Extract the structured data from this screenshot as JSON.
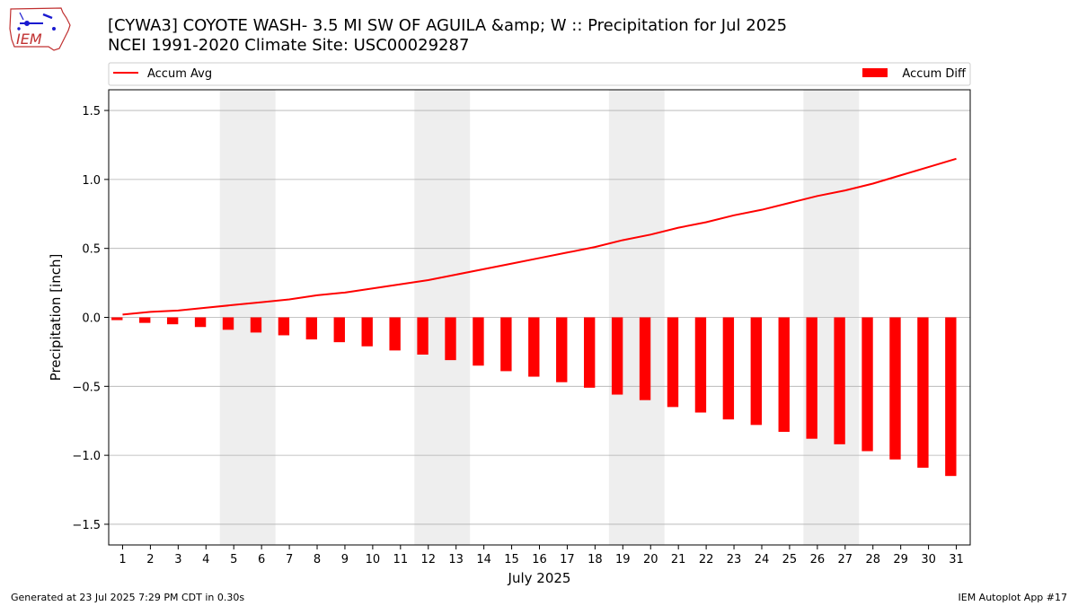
{
  "logo": {
    "text": "IEM"
  },
  "header": {
    "title_line1": "[CYWA3] COYOTE WASH- 3.5 MI SW OF AGUILA &amp; W :: Precipitation for Jul 2025",
    "title_line2": "NCEI 1991-2020 Climate Site: USC00029287"
  },
  "footer": {
    "left": "Generated at 23 Jul 2025 7:29 PM CDT in 0.30s",
    "right": "IEM Autoplot App #17"
  },
  "colors": {
    "accum_avg": "#ff0000",
    "accum_diff": "#ff0000",
    "weekend_shade": "#eeeeee",
    "grid": "#b0b0b0"
  },
  "chart_data": {
    "type": "bar",
    "title": "[CYWA3] COYOTE WASH- 3.5 MI SW OF AGUILA &amp; W :: Precipitation for Jul 2025",
    "subtitle": "NCEI 1991-2020 Climate Site: USC00029287",
    "xlabel": "July 2025",
    "ylabel": "Precipitation [inch]",
    "xlim": [
      0.5,
      31.5
    ],
    "ylim": [
      -1.65,
      1.65
    ],
    "yticks": [
      -1.5,
      -1.0,
      -0.5,
      0.0,
      0.5,
      1.0,
      1.5
    ],
    "ytick_labels": [
      "−1.5",
      "−1.0",
      "−0.5",
      "0.0",
      "0.5",
      "1.0",
      "1.5"
    ],
    "grid": "horizontal",
    "legend_placement": "top, above plot",
    "categories": [
      "1",
      "2",
      "3",
      "4",
      "5",
      "6",
      "7",
      "8",
      "9",
      "10",
      "11",
      "12",
      "13",
      "14",
      "15",
      "16",
      "17",
      "18",
      "19",
      "20",
      "21",
      "22",
      "23",
      "24",
      "25",
      "26",
      "27",
      "28",
      "29",
      "30",
      "31"
    ],
    "shaded_spans": [
      [
        4.5,
        6.5
      ],
      [
        11.5,
        13.5
      ],
      [
        18.5,
        20.5
      ],
      [
        25.5,
        27.5
      ]
    ],
    "series": [
      {
        "name": "Accum Avg",
        "kind": "line",
        "values": [
          0.02,
          0.04,
          0.05,
          0.07,
          0.09,
          0.11,
          0.13,
          0.16,
          0.18,
          0.21,
          0.24,
          0.27,
          0.31,
          0.35,
          0.39,
          0.43,
          0.47,
          0.51,
          0.56,
          0.6,
          0.65,
          0.69,
          0.74,
          0.78,
          0.83,
          0.88,
          0.92,
          0.97,
          1.03,
          1.09,
          1.15
        ]
      },
      {
        "name": "Accum Diff",
        "kind": "bar",
        "values": [
          -0.02,
          -0.04,
          -0.05,
          -0.07,
          -0.09,
          -0.11,
          -0.13,
          -0.16,
          -0.18,
          -0.21,
          -0.24,
          -0.27,
          -0.31,
          -0.35,
          -0.39,
          -0.43,
          -0.47,
          -0.51,
          -0.56,
          -0.6,
          -0.65,
          -0.69,
          -0.74,
          -0.78,
          -0.83,
          -0.88,
          -0.92,
          -0.97,
          -1.03,
          -1.09,
          -1.15
        ]
      }
    ]
  }
}
